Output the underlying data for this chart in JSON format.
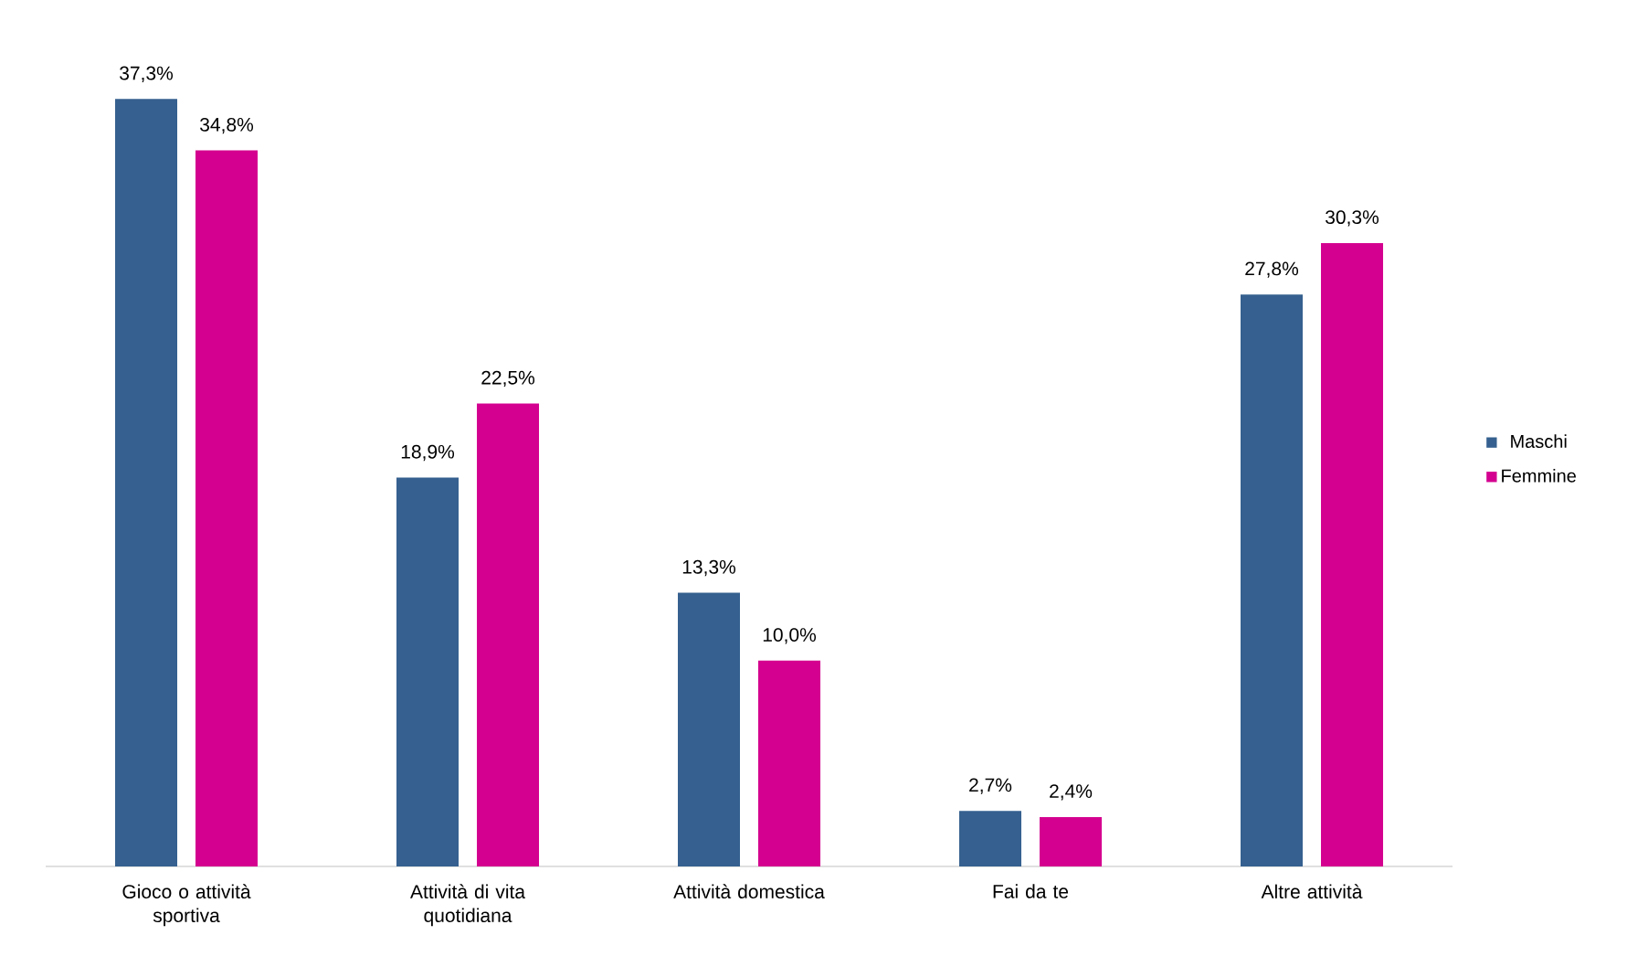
{
  "chart_data": {
    "type": "bar",
    "categories": [
      "Gioco o attività sportiva",
      "Attività di vita quotidiana",
      "Attività domestica",
      "Fai da te",
      "Altre attività"
    ],
    "series": [
      {
        "name": "Maschi",
        "color": "#35608f",
        "values": [
          37.3,
          18.9,
          13.3,
          2.7,
          27.8
        ],
        "value_labels": [
          "37,3%",
          "18,9%",
          "13,3%",
          "2,7%",
          "27,8%"
        ]
      },
      {
        "name": "Femmine",
        "color": "#d4008f",
        "values": [
          34.8,
          22.5,
          10.0,
          2.4,
          30.3
        ],
        "value_labels": [
          "34,8%",
          "22,5%",
          "10,0%",
          "2,4%",
          "30,3%"
        ]
      }
    ],
    "legend": "right"
  }
}
